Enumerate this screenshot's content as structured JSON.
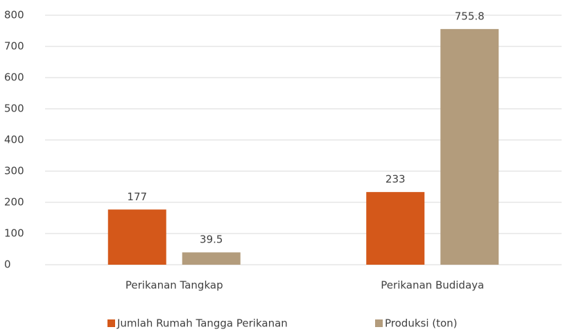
{
  "chart_data": {
    "type": "bar",
    "categories": [
      "Perikanan Tangkap",
      "Perikanan Budidaya"
    ],
    "series": [
      {
        "name": "Jumlah Rumah Tangga Perikanan",
        "color": "#d4581a",
        "values": [
          177,
          233
        ]
      },
      {
        "name": "Produksi (ton)",
        "color": "#b39c7c",
        "values": [
          39.5,
          755.8
        ]
      }
    ],
    "ylim": [
      0,
      800
    ],
    "yticks": [
      0,
      100,
      200,
      300,
      400,
      500,
      600,
      700,
      800
    ],
    "grid": true,
    "legend": "bottom"
  }
}
